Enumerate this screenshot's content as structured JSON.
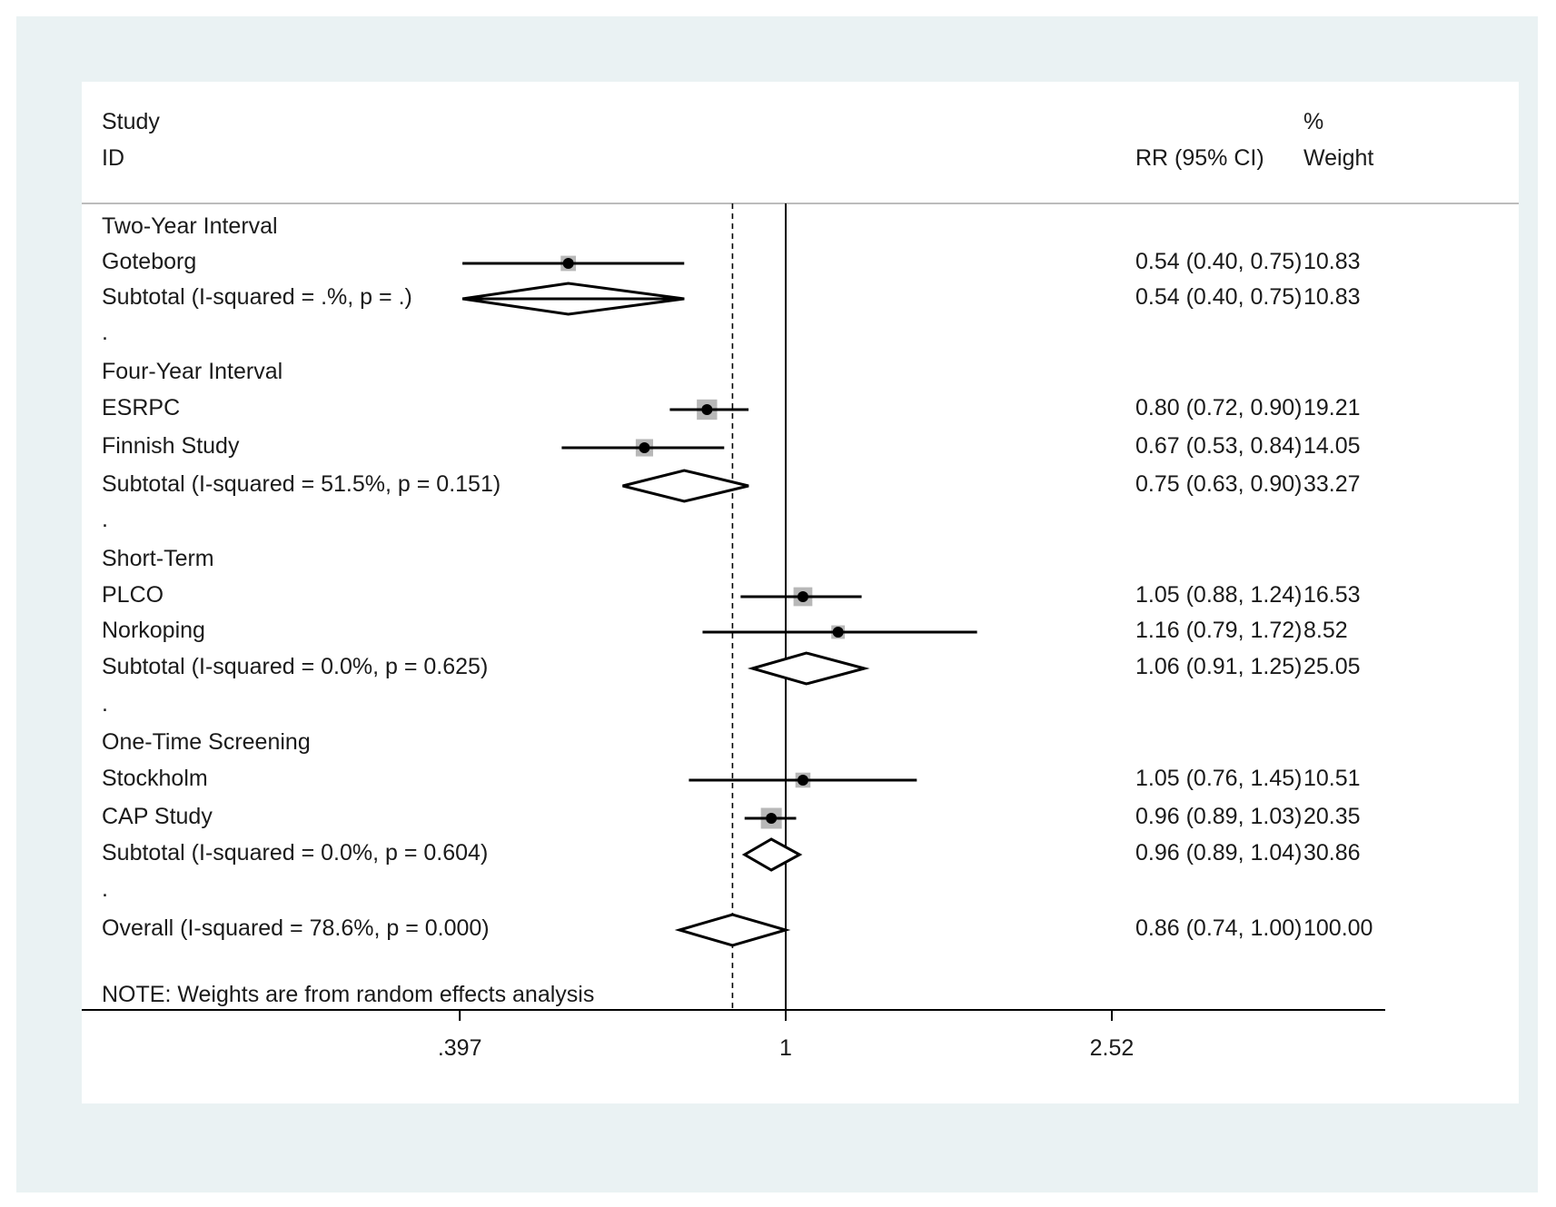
{
  "chart_data": {
    "type": "forest",
    "header": {
      "study_label": "Study",
      "id_label": "ID",
      "effect_label": "RR (95% CI)",
      "weight_pct_label": "%",
      "weight_label": "Weight"
    },
    "x_scale": "log",
    "x_ticks": [
      {
        "value": 0.397,
        "label": ".397"
      },
      {
        "value": 1,
        "label": "1"
      },
      {
        "value": 2.52,
        "label": "2.52"
      }
    ],
    "null_line": 1,
    "overall_line": 0.86,
    "rows": [
      {
        "kind": "group",
        "label": "Two-Year Interval"
      },
      {
        "kind": "study",
        "label": "Goteborg",
        "est": 0.54,
        "lo": 0.4,
        "hi": 0.75,
        "weight": 10.83,
        "text": "0.54 (0.40, 0.75)",
        "weight_text": "10.83"
      },
      {
        "kind": "subtotal",
        "label": "Subtotal  (I-squared = .%, p = .)",
        "est": 0.54,
        "lo": 0.4,
        "hi": 0.75,
        "text": "0.54 (0.40, 0.75)",
        "weight_text": "10.83"
      },
      {
        "kind": "dot",
        "label": "."
      },
      {
        "kind": "group",
        "label": "Four-Year Interval"
      },
      {
        "kind": "study",
        "label": "ESRPC",
        "est": 0.8,
        "lo": 0.72,
        "hi": 0.9,
        "weight": 19.21,
        "text": "0.80 (0.72, 0.90)",
        "weight_text": "19.21"
      },
      {
        "kind": "study",
        "label": "Finnish Study",
        "est": 0.67,
        "lo": 0.53,
        "hi": 0.84,
        "weight": 14.05,
        "text": "0.67 (0.53, 0.84)",
        "weight_text": "14.05"
      },
      {
        "kind": "subtotal",
        "label": "Subtotal  (I-squared = 51.5%, p = 0.151)",
        "est": 0.75,
        "lo": 0.63,
        "hi": 0.9,
        "text": "0.75 (0.63, 0.90)",
        "weight_text": "33.27"
      },
      {
        "kind": "dot",
        "label": "."
      },
      {
        "kind": "group",
        "label": "Short-Term"
      },
      {
        "kind": "study",
        "label": "PLCO",
        "est": 1.05,
        "lo": 0.88,
        "hi": 1.24,
        "weight": 16.53,
        "text": "1.05 (0.88, 1.24)",
        "weight_text": "16.53"
      },
      {
        "kind": "study",
        "label": "Norkoping",
        "est": 1.16,
        "lo": 0.79,
        "hi": 1.72,
        "weight": 8.52,
        "text": "1.16 (0.79, 1.72)",
        "weight_text": "8.52"
      },
      {
        "kind": "subtotal",
        "label": "Subtotal  (I-squared = 0.0%, p = 0.625)",
        "est": 1.06,
        "lo": 0.91,
        "hi": 1.25,
        "text": "1.06 (0.91, 1.25)",
        "weight_text": "25.05"
      },
      {
        "kind": "dot",
        "label": "."
      },
      {
        "kind": "group",
        "label": "One-Time Screening"
      },
      {
        "kind": "study",
        "label": "Stockholm",
        "est": 1.05,
        "lo": 0.76,
        "hi": 1.45,
        "weight": 10.51,
        "text": "1.05 (0.76, 1.45)",
        "weight_text": "10.51"
      },
      {
        "kind": "study",
        "label": "CAP Study",
        "est": 0.96,
        "lo": 0.89,
        "hi": 1.03,
        "weight": 20.35,
        "text": "0.96 (0.89, 1.03)",
        "weight_text": "20.35"
      },
      {
        "kind": "subtotal",
        "label": "Subtotal  (I-squared = 0.0%, p = 0.604)",
        "est": 0.96,
        "lo": 0.89,
        "hi": 1.04,
        "text": "0.96 (0.89, 1.04)",
        "weight_text": "30.86"
      },
      {
        "kind": "dot",
        "label": "."
      },
      {
        "kind": "overall",
        "label": "Overall  (I-squared = 78.6%, p = 0.000)",
        "est": 0.86,
        "lo": 0.74,
        "hi": 1.0,
        "text": "0.86 (0.74, 1.00)",
        "weight_text": "100.00"
      }
    ],
    "note": "NOTE: Weights are from random effects analysis",
    "colors": {
      "background": "#eaf2f3",
      "panel": "#ffffff",
      "line": "#000000",
      "weight_box": "#b8b8b8",
      "text": "#1a1a1a"
    }
  }
}
